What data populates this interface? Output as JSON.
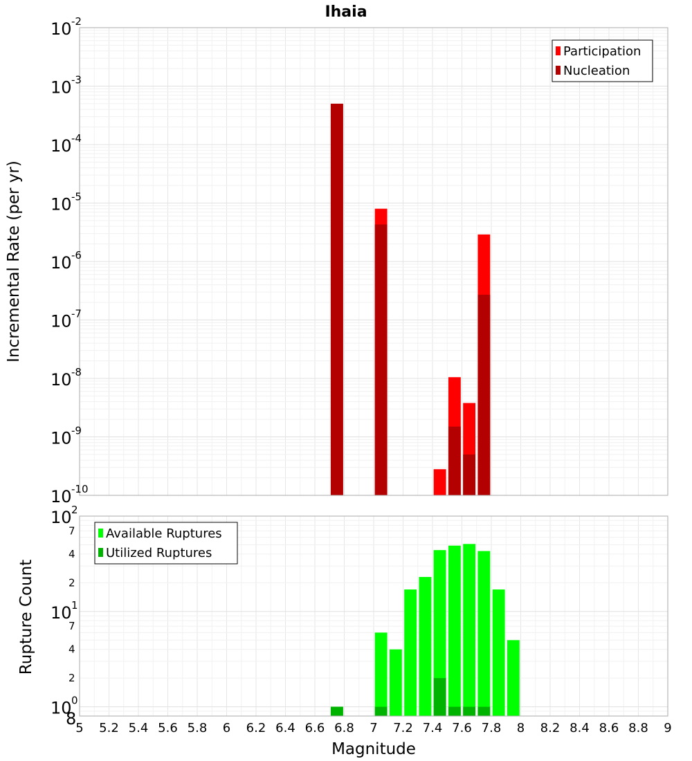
{
  "title": "Ihaia",
  "xlabel": "Magnitude",
  "chart_data": [
    {
      "type": "bar",
      "ylabel": "Incremental Rate (per yr)",
      "yscale": "log",
      "ylim": [
        1e-10,
        0.01
      ],
      "xlim": [
        5,
        9
      ],
      "grid": true,
      "legend_position": "top-right",
      "series": [
        {
          "name": "Participation",
          "color": "#ff0000",
          "x": [
            6.75,
            7.05,
            7.45,
            7.55,
            7.65,
            7.75
          ],
          "values": [
            0.0005,
            8e-06,
            2.8e-10,
            1.05e-08,
            3.8e-09,
            2.9e-06
          ]
        },
        {
          "name": "Nucleation",
          "color": "#b30000",
          "x": [
            6.75,
            7.05,
            7.55,
            7.65,
            7.75
          ],
          "values": [
            0.0005,
            4.3e-06,
            1.5e-09,
            5e-10,
            2.7e-07
          ]
        }
      ]
    },
    {
      "type": "bar",
      "ylabel": "Rupture Count",
      "yscale": "log",
      "ylim": [
        0.8,
        100
      ],
      "xlim": [
        5,
        9
      ],
      "grid": true,
      "legend_position": "top-left",
      "series": [
        {
          "name": "Available Ruptures",
          "color": "#00ff00",
          "x": [
            6.75,
            7.05,
            7.15,
            7.25,
            7.35,
            7.45,
            7.55,
            7.65,
            7.75,
            7.85,
            7.95
          ],
          "values": [
            1,
            6,
            4,
            17,
            23,
            44,
            49,
            51,
            43,
            17,
            5
          ]
        },
        {
          "name": "Utilized Ruptures",
          "color": "#00b300",
          "x": [
            6.75,
            7.05,
            7.45,
            7.55,
            7.65,
            7.75
          ],
          "values": [
            1,
            1,
            2,
            1,
            1,
            1
          ]
        }
      ]
    }
  ],
  "xticks": [
    "5",
    "5.2",
    "5.4",
    "5.6",
    "5.8",
    "6",
    "6.2",
    "6.4",
    "6.6",
    "6.8",
    "7",
    "7.2",
    "7.4",
    "7.6",
    "7.8",
    "8",
    "8.2",
    "8.4",
    "8.6",
    "8.8",
    "9"
  ],
  "top_ytick_labels": [
    {
      "base": "10",
      "exp": "-10"
    },
    {
      "base": "10",
      "exp": "-9"
    },
    {
      "base": "10",
      "exp": "-8"
    },
    {
      "base": "10",
      "exp": "-7"
    },
    {
      "base": "10",
      "exp": "-6"
    },
    {
      "base": "10",
      "exp": "-5"
    },
    {
      "base": "10",
      "exp": "-4"
    },
    {
      "base": "10",
      "exp": "-3"
    },
    {
      "base": "10",
      "exp": "-2"
    }
  ],
  "bottom_ytick_labels": {
    "majors": [
      {
        "base": "10",
        "exp": "0"
      },
      {
        "base": "10",
        "exp": "1"
      },
      {
        "base": "10",
        "exp": "2"
      }
    ],
    "minors": [
      "8",
      "2",
      "4",
      "7",
      "2",
      "4",
      "7"
    ]
  }
}
